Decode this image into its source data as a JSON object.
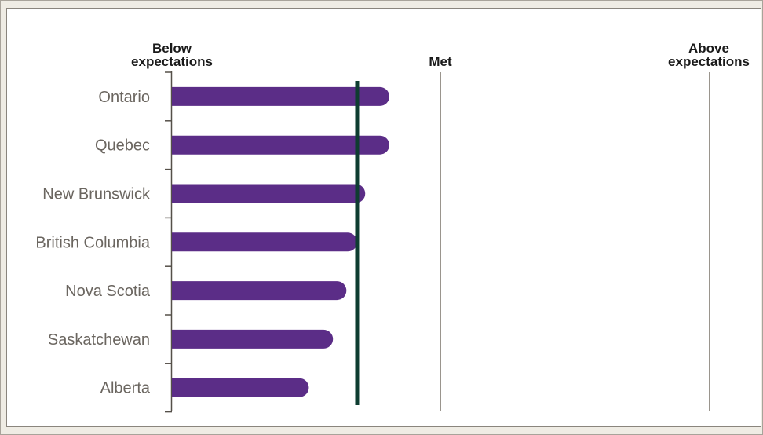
{
  "chart_data": {
    "type": "bar",
    "orientation": "horizontal",
    "categories": [
      "Ontario",
      "Quebec",
      "New Brunswick",
      "British Columbia",
      "Nova Scotia",
      "Saskatchewan",
      "Alberta"
    ],
    "values": [
      0.81,
      0.81,
      0.72,
      0.69,
      0.65,
      0.6,
      0.51
    ],
    "xlim": [
      0,
      2
    ],
    "scale_labels": [
      {
        "value": 0,
        "lines": [
          "Below",
          "expectations"
        ]
      },
      {
        "value": 1,
        "lines": [
          "Met"
        ]
      },
      {
        "value": 2,
        "lines": [
          "Above",
          "expectations"
        ]
      }
    ],
    "reference_line": {
      "value": 0.69
    },
    "grid": true,
    "legend": "none",
    "colors": {
      "bar": "#5b2d87",
      "reference": "#0e3d31",
      "gridline": "#9a958d",
      "axis": "#555049",
      "category_text": "#6b6660",
      "heading_text": "#1a1a1a"
    }
  }
}
